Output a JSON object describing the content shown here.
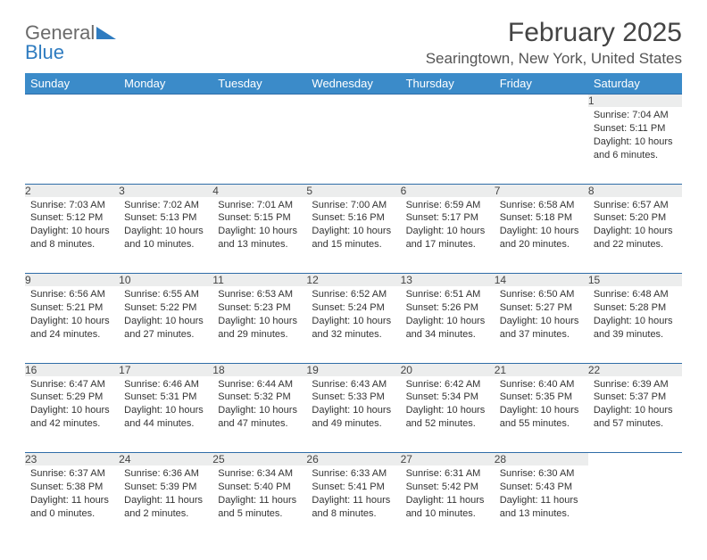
{
  "brand": {
    "line1": "General",
    "line2": "Blue"
  },
  "title": "February 2025",
  "location": "Searingtown, New York, United States",
  "dayHeaders": [
    "Sunday",
    "Monday",
    "Tuesday",
    "Wednesday",
    "Thursday",
    "Friday",
    "Saturday"
  ],
  "colors": {
    "headerBg": "#3b8bc9",
    "headerText": "#ffffff",
    "dayNumBg": "#eceded",
    "rowBorder": "#2f6da8",
    "brandGray": "#6b6b6b",
    "brandBlue": "#2f7cc0"
  },
  "weeks": [
    [
      null,
      null,
      null,
      null,
      null,
      null,
      {
        "n": "1",
        "sr": "7:04 AM",
        "ss": "5:11 PM",
        "dl": "10 hours and 6 minutes."
      }
    ],
    [
      {
        "n": "2",
        "sr": "7:03 AM",
        "ss": "5:12 PM",
        "dl": "10 hours and 8 minutes."
      },
      {
        "n": "3",
        "sr": "7:02 AM",
        "ss": "5:13 PM",
        "dl": "10 hours and 10 minutes."
      },
      {
        "n": "4",
        "sr": "7:01 AM",
        "ss": "5:15 PM",
        "dl": "10 hours and 13 minutes."
      },
      {
        "n": "5",
        "sr": "7:00 AM",
        "ss": "5:16 PM",
        "dl": "10 hours and 15 minutes."
      },
      {
        "n": "6",
        "sr": "6:59 AM",
        "ss": "5:17 PM",
        "dl": "10 hours and 17 minutes."
      },
      {
        "n": "7",
        "sr": "6:58 AM",
        "ss": "5:18 PM",
        "dl": "10 hours and 20 minutes."
      },
      {
        "n": "8",
        "sr": "6:57 AM",
        "ss": "5:20 PM",
        "dl": "10 hours and 22 minutes."
      }
    ],
    [
      {
        "n": "9",
        "sr": "6:56 AM",
        "ss": "5:21 PM",
        "dl": "10 hours and 24 minutes."
      },
      {
        "n": "10",
        "sr": "6:55 AM",
        "ss": "5:22 PM",
        "dl": "10 hours and 27 minutes."
      },
      {
        "n": "11",
        "sr": "6:53 AM",
        "ss": "5:23 PM",
        "dl": "10 hours and 29 minutes."
      },
      {
        "n": "12",
        "sr": "6:52 AM",
        "ss": "5:24 PM",
        "dl": "10 hours and 32 minutes."
      },
      {
        "n": "13",
        "sr": "6:51 AM",
        "ss": "5:26 PM",
        "dl": "10 hours and 34 minutes."
      },
      {
        "n": "14",
        "sr": "6:50 AM",
        "ss": "5:27 PM",
        "dl": "10 hours and 37 minutes."
      },
      {
        "n": "15",
        "sr": "6:48 AM",
        "ss": "5:28 PM",
        "dl": "10 hours and 39 minutes."
      }
    ],
    [
      {
        "n": "16",
        "sr": "6:47 AM",
        "ss": "5:29 PM",
        "dl": "10 hours and 42 minutes."
      },
      {
        "n": "17",
        "sr": "6:46 AM",
        "ss": "5:31 PM",
        "dl": "10 hours and 44 minutes."
      },
      {
        "n": "18",
        "sr": "6:44 AM",
        "ss": "5:32 PM",
        "dl": "10 hours and 47 minutes."
      },
      {
        "n": "19",
        "sr": "6:43 AM",
        "ss": "5:33 PM",
        "dl": "10 hours and 49 minutes."
      },
      {
        "n": "20",
        "sr": "6:42 AM",
        "ss": "5:34 PM",
        "dl": "10 hours and 52 minutes."
      },
      {
        "n": "21",
        "sr": "6:40 AM",
        "ss": "5:35 PM",
        "dl": "10 hours and 55 minutes."
      },
      {
        "n": "22",
        "sr": "6:39 AM",
        "ss": "5:37 PM",
        "dl": "10 hours and 57 minutes."
      }
    ],
    [
      {
        "n": "23",
        "sr": "6:37 AM",
        "ss": "5:38 PM",
        "dl": "11 hours and 0 minutes."
      },
      {
        "n": "24",
        "sr": "6:36 AM",
        "ss": "5:39 PM",
        "dl": "11 hours and 2 minutes."
      },
      {
        "n": "25",
        "sr": "6:34 AM",
        "ss": "5:40 PM",
        "dl": "11 hours and 5 minutes."
      },
      {
        "n": "26",
        "sr": "6:33 AM",
        "ss": "5:41 PM",
        "dl": "11 hours and 8 minutes."
      },
      {
        "n": "27",
        "sr": "6:31 AM",
        "ss": "5:42 PM",
        "dl": "11 hours and 10 minutes."
      },
      {
        "n": "28",
        "sr": "6:30 AM",
        "ss": "5:43 PM",
        "dl": "11 hours and 13 minutes."
      },
      null
    ]
  ],
  "labels": {
    "sunrise": "Sunrise:",
    "sunset": "Sunset:",
    "daylight": "Daylight:"
  }
}
